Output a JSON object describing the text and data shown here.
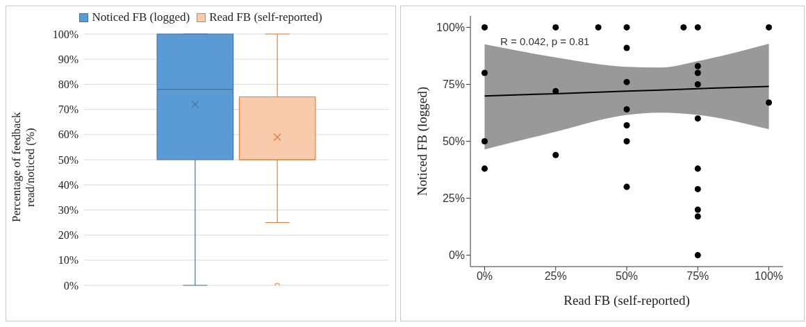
{
  "chart_data": [
    {
      "type": "box",
      "ylabel": "Percentage of feedback read/noticed (%)",
      "categories": [
        null
      ],
      "legend": "top",
      "grid": "y",
      "ylim": [
        0,
        100
      ],
      "yticks": [
        {
          "value": 0,
          "label": "0%"
        },
        {
          "value": 10,
          "label": "10%"
        },
        {
          "value": 20,
          "label": "20%"
        },
        {
          "value": 30,
          "label": "30%"
        },
        {
          "value": 40,
          "label": "40%"
        },
        {
          "value": 50,
          "label": "50%"
        },
        {
          "value": 60,
          "label": "60%"
        },
        {
          "value": 70,
          "label": "70%"
        },
        {
          "value": 80,
          "label": "80%"
        },
        {
          "value": 90,
          "label": "90%"
        },
        {
          "value": 100,
          "label": "100%"
        }
      ],
      "series": [
        {
          "name": "Noticed FB (logged)",
          "color": "#5b9bd5",
          "boxes": [
            {
              "low": 0,
              "q1": 50,
              "median": 78,
              "q3": 100,
              "high": 100,
              "mean": 72
            }
          ]
        },
        {
          "name": "Read FB (self-reported)",
          "color": "#f8cbad",
          "boxes": [
            {
              "low": 25,
              "q1": 50,
              "median": 50,
              "q3": 75,
              "high": 100,
              "mean": 59,
              "outliers": [
                0
              ]
            }
          ]
        }
      ]
    },
    {
      "type": "scatter",
      "xlabel": "Read FB (self-reported)",
      "ylabel": "Noticed FB (logged)",
      "grid": false,
      "annotations": [
        "R = 0.042, p = 0.81"
      ],
      "xlim": [
        -5,
        105
      ],
      "xticks": [
        {
          "value": 0,
          "label": "0%"
        },
        {
          "value": 25,
          "label": "25%"
        },
        {
          "value": 50,
          "label": "50%"
        },
        {
          "value": 75,
          "label": "75%"
        },
        {
          "value": 100,
          "label": "100%"
        }
      ],
      "ylim": [
        -5,
        105
      ],
      "yticks": [
        {
          "value": 0,
          "label": "0%"
        },
        {
          "value": 25,
          "label": "25%"
        },
        {
          "value": 50,
          "label": "50%"
        },
        {
          "value": 75,
          "label": "75%"
        },
        {
          "value": 100,
          "label": "100%"
        }
      ],
      "series": [
        {
          "type": "line",
          "marker": "none",
          "color": "#000000",
          "x": [
            0,
            25,
            50,
            62,
            75,
            100
          ],
          "values": [
            69.9,
            70.9,
            72,
            72.5,
            73.1,
            74.1
          ],
          "lower": [
            46.4,
            54.2,
            61.6,
            62.6,
            61.6,
            55.3
          ],
          "upper": [
            92.6,
            86.8,
            82.7,
            82.4,
            85.2,
            92.8
          ]
        },
        {
          "type": "scatter",
          "marker": "circle",
          "color": "#000000",
          "x": [
            0,
            0,
            0,
            0,
            25,
            25,
            25,
            40,
            50,
            50,
            50,
            50,
            50,
            50,
            50,
            70,
            75,
            75,
            75,
            75,
            75,
            75,
            75,
            75,
            75,
            75,
            100,
            100
          ],
          "values": [
            100,
            80,
            50,
            38,
            100,
            72,
            44,
            100,
            100,
            91,
            76,
            64,
            57,
            50,
            30,
            100,
            100,
            83,
            80,
            75,
            60,
            38,
            29,
            20,
            17,
            0,
            100,
            67
          ]
        }
      ]
    }
  ]
}
